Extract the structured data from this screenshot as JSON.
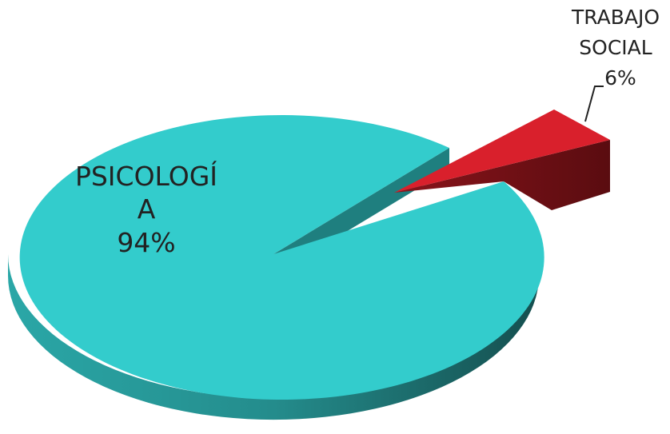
{
  "chart_data": {
    "type": "pie",
    "title": "",
    "legend": "none",
    "slices": [
      {
        "label_lines": [
          "PSICOLOGÍ",
          "A"
        ],
        "label": "PSICOLOGÍA",
        "value": 94,
        "value_label": "94%",
        "color": "#33CCCC",
        "side_color": "#1F7F7F",
        "exploded": false
      },
      {
        "label_lines": [
          "TRABAJO",
          "SOCIAL"
        ],
        "label": "TRABAJO SOCIAL",
        "value": 6,
        "value_label": "6%",
        "color": "#D9202C",
        "side_color": "#6B0F14",
        "exploded": true
      }
    ]
  }
}
